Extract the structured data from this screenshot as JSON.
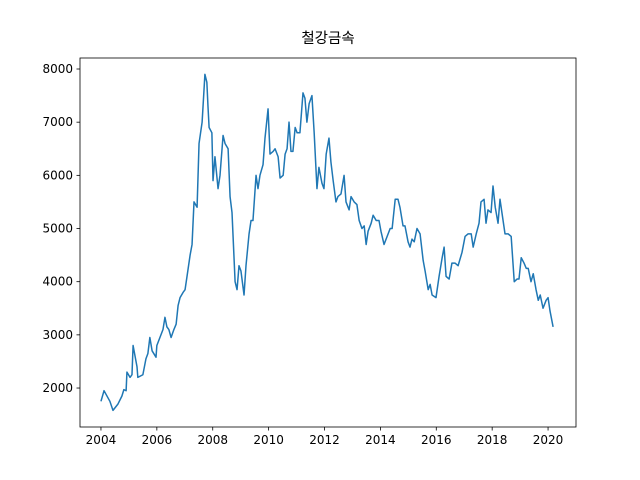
{
  "chart_data": {
    "type": "line",
    "title": "철강금속",
    "x": [
      2004.0,
      2004.11,
      2004.32,
      2004.43,
      2004.61,
      2004.75,
      2004.82,
      2004.9,
      2004.93,
      2005.04,
      2005.11,
      2005.15,
      2005.29,
      2005.32,
      2005.5,
      2005.61,
      2005.68,
      2005.75,
      2005.83,
      2005.97,
      2006.0,
      2006.11,
      2006.22,
      2006.29,
      2006.36,
      2006.43,
      2006.51,
      2006.61,
      2006.69,
      2006.76,
      2006.83,
      2006.94,
      2007.01,
      2007.08,
      2007.19,
      2007.26,
      2007.33,
      2007.44,
      2007.51,
      2007.62,
      2007.72,
      2007.79,
      2007.83,
      2007.87,
      2007.97,
      2008.01,
      2008.08,
      2008.19,
      2008.26,
      2008.37,
      2008.44,
      2008.55,
      2008.62,
      2008.69,
      2008.8,
      2008.87,
      2008.94,
      2009.01,
      2009.12,
      2009.19,
      2009.3,
      2009.37,
      2009.44,
      2009.55,
      2009.62,
      2009.69,
      2009.8,
      2009.87,
      2009.98,
      2010.05,
      2010.16,
      2010.23,
      2010.34,
      2010.41,
      2010.52,
      2010.59,
      2010.66,
      2010.73,
      2010.8,
      2010.87,
      2010.95,
      2011.02,
      2011.12,
      2011.23,
      2011.3,
      2011.37,
      2011.45,
      2011.55,
      2011.63,
      2011.73,
      2011.8,
      2011.91,
      2011.98,
      2012.06,
      2012.16,
      2012.23,
      2012.31,
      2012.41,
      2012.48,
      2012.59,
      2012.7,
      2012.77,
      2012.88,
      2012.95,
      2013.06,
      2013.16,
      2013.24,
      2013.34,
      2013.42,
      2013.49,
      2013.56,
      2013.67,
      2013.74,
      2013.85,
      2013.95,
      2014.02,
      2014.13,
      2014.24,
      2014.35,
      2014.42,
      2014.53,
      2014.63,
      2014.7,
      2014.81,
      2014.88,
      2014.99,
      2015.06,
      2015.13,
      2015.21,
      2015.31,
      2015.42,
      2015.53,
      2015.6,
      2015.71,
      2015.78,
      2015.85,
      2015.99,
      2016.1,
      2016.21,
      2016.28,
      2016.35,
      2016.46,
      2016.56,
      2016.67,
      2016.78,
      2016.92,
      2017.03,
      2017.14,
      2017.25,
      2017.32,
      2017.43,
      2017.53,
      2017.6,
      2017.71,
      2017.78,
      2017.85,
      2017.96,
      2018.03,
      2018.11,
      2018.21,
      2018.28,
      2018.39,
      2018.46,
      2018.57,
      2018.68,
      2018.79,
      2018.89,
      2018.96,
      2019.04,
      2019.14,
      2019.22,
      2019.29,
      2019.39,
      2019.47,
      2019.57,
      2019.65,
      2019.72,
      2019.82,
      2019.93,
      2020.0,
      2020.07,
      2020.18
    ],
    "series": [
      {
        "color": "#1f77b4",
        "values": [
          1750,
          1950,
          1750,
          1580,
          1700,
          1850,
          1970,
          1950,
          2300,
          2200,
          2250,
          2800,
          2400,
          2200,
          2250,
          2550,
          2650,
          2950,
          2700,
          2580,
          2800,
          2950,
          3100,
          3330,
          3150,
          3100,
          2950,
          3100,
          3200,
          3550,
          3700,
          3800,
          3850,
          4100,
          4500,
          4700,
          5500,
          5400,
          6600,
          7000,
          7900,
          7750,
          7300,
          6900,
          6800,
          5900,
          6350,
          5750,
          6000,
          6750,
          6600,
          6500,
          5600,
          5300,
          4000,
          3850,
          4300,
          4200,
          3750,
          4300,
          4900,
          5150,
          5150,
          6000,
          5750,
          6000,
          6200,
          6700,
          7250,
          6400,
          6450,
          6500,
          6350,
          5950,
          6000,
          6400,
          6500,
          7000,
          6450,
          6450,
          6900,
          6800,
          6800,
          7550,
          7450,
          7000,
          7350,
          7500,
          6800,
          5750,
          6150,
          5850,
          5750,
          6400,
          6700,
          6250,
          5900,
          5500,
          5600,
          5650,
          6000,
          5500,
          5350,
          5600,
          5500,
          5450,
          5150,
          5000,
          5050,
          4700,
          4950,
          5100,
          5250,
          5150,
          5150,
          4950,
          4700,
          4850,
          5000,
          5000,
          5550,
          5550,
          5400,
          5050,
          5050,
          4750,
          4650,
          4800,
          4750,
          5000,
          4900,
          4400,
          4200,
          3850,
          3950,
          3750,
          3700,
          4100,
          4450,
          4650,
          4100,
          4050,
          4350,
          4350,
          4300,
          4550,
          4850,
          4900,
          4900,
          4650,
          4900,
          5100,
          5500,
          5550,
          5100,
          5350,
          5300,
          5800,
          5400,
          5100,
          5550,
          5150,
          4900,
          4900,
          4850,
          4000,
          4050,
          4050,
          4450,
          4350,
          4250,
          4250,
          4000,
          4150,
          3850,
          3650,
          3750,
          3500,
          3650,
          3700,
          3450,
          3150
        ]
      }
    ],
    "xlim": [
      2003.25,
      2021.0
    ],
    "xticks": [
      2004,
      2006,
      2008,
      2010,
      2012,
      2014,
      2016,
      2018,
      2020
    ],
    "ylim": [
      1267,
      8207
    ],
    "yticks": [
      2000,
      3000,
      4000,
      5000,
      6000,
      7000,
      8000
    ]
  }
}
